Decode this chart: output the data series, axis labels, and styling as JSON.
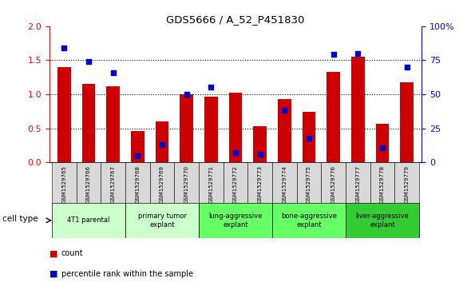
{
  "title": "GDS5666 / A_52_P451830",
  "samples": [
    "GSM1529765",
    "GSM1529766",
    "GSM1529767",
    "GSM1529768",
    "GSM1529769",
    "GSM1529770",
    "GSM1529771",
    "GSM1529772",
    "GSM1529773",
    "GSM1529774",
    "GSM1529775",
    "GSM1529776",
    "GSM1529777",
    "GSM1529778",
    "GSM1529779"
  ],
  "counts": [
    1.4,
    1.15,
    1.12,
    0.46,
    0.6,
    1.0,
    0.97,
    1.02,
    0.53,
    0.93,
    0.74,
    1.33,
    1.55,
    0.57,
    1.17
  ],
  "percentiles": [
    84,
    74,
    66,
    5,
    13,
    50,
    55,
    7,
    6,
    38,
    18,
    79,
    80,
    11,
    70
  ],
  "ylim_left": [
    0,
    2
  ],
  "ylim_right": [
    0,
    100
  ],
  "yticks_left": [
    0,
    0.5,
    1.0,
    1.5,
    2.0
  ],
  "yticks_right": [
    0,
    25,
    50,
    75,
    100
  ],
  "bar_color": "#cc0000",
  "dot_color": "#0000cc",
  "cell_types": [
    {
      "label": "4T1 parental",
      "start": 0,
      "end": 3,
      "color": "#ccffcc"
    },
    {
      "label": "primary tumor\nexplant",
      "start": 3,
      "end": 6,
      "color": "#ccffcc"
    },
    {
      "label": "lung-aggressive\nexplant",
      "start": 6,
      "end": 9,
      "color": "#66ff66"
    },
    {
      "label": "bone-aggressive\nexplant",
      "start": 9,
      "end": 12,
      "color": "#66ff66"
    },
    {
      "label": "liver-aggressive\nexplant",
      "start": 12,
      "end": 15,
      "color": "#33cc33"
    }
  ],
  "legend_count_label": "count",
  "legend_pct_label": "percentile rank within the sample",
  "cell_type_label": "cell type",
  "background_color": "#ffffff"
}
